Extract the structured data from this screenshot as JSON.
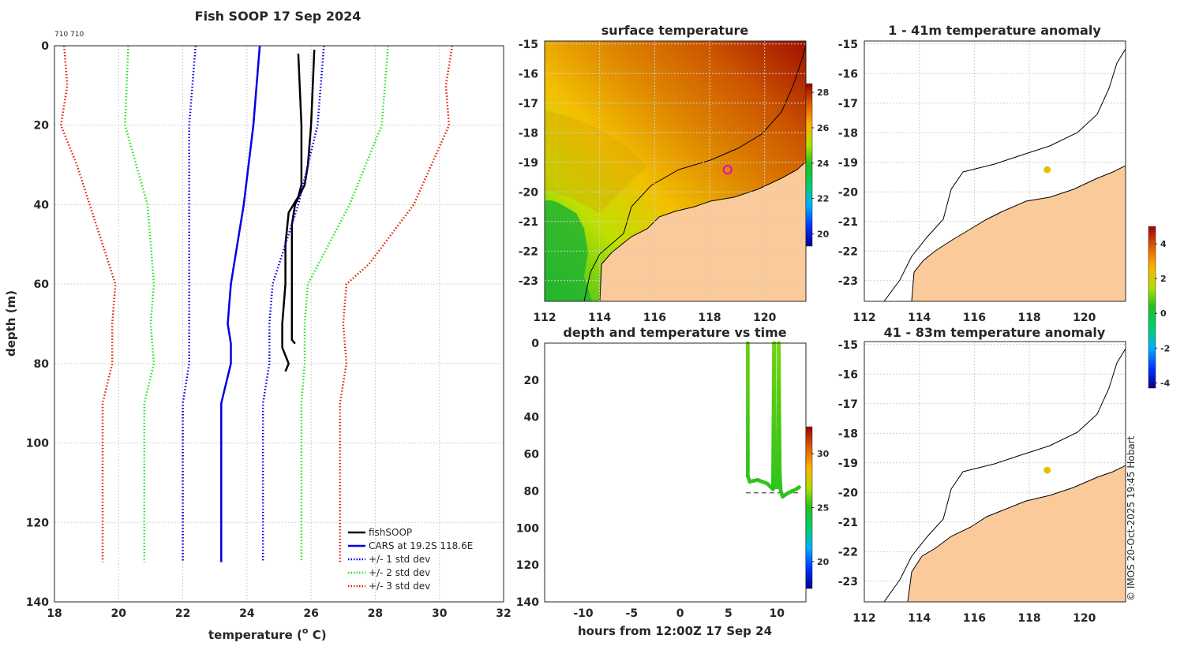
{
  "figure": {
    "credit": "© IMOS 20-Oct-2025 19:45 Hobart",
    "colors": {
      "obs": "#000000",
      "cars": "#0000e6",
      "std1": "#0000e6",
      "std2": "#1ee61e",
      "std3": "#e61e00",
      "land": "#fbca9a"
    }
  },
  "profile_panel": {
    "title": "Fish SOOP 17 Sep 2024",
    "corner_label": "710 710",
    "xlabel_main": "temperature (",
    "xlabel_sup": "o",
    "xlabel_end": " C)",
    "ylabel": "depth (m)",
    "legend": [
      "fishSOOP",
      "CARS at 19.2S 118.6E",
      "+/- 1 std dev",
      "+/- 2 std dev",
      "+/- 3 std dev"
    ]
  },
  "map_panels": {
    "sst_title": "surface temperature",
    "anom1_title": "1 - 41m temperature anomaly",
    "anom2_title": "41 - 83m temperature anomaly",
    "sst_colorbar_ticks": [
      "20",
      "22",
      "24",
      "26",
      "28"
    ],
    "anom_colorbar_ticks": [
      "-4",
      "-2",
      "0",
      "2",
      "4"
    ],
    "lon_ticks": [
      "112",
      "114",
      "116",
      "118",
      "120"
    ],
    "lat_ticks": [
      "-15",
      "-16",
      "-17",
      "-18",
      "-19",
      "-20",
      "-21",
      "-22",
      "-23"
    ]
  },
  "time_panel": {
    "title": "depth and temperature vs time",
    "xlabel": "hours from 12:00Z 17 Sep 24",
    "colorbar_ticks": [
      "20",
      "25",
      "30"
    ]
  },
  "chart_data": [
    {
      "type": "line",
      "title": "Fish SOOP 17 Sep 2024",
      "xlabel": "temperature (o C)",
      "ylabel": "depth (m)",
      "xlim": [
        18,
        32
      ],
      "ylim": [
        140,
        0
      ],
      "xticks": [
        18,
        20,
        22,
        24,
        26,
        28,
        30,
        32
      ],
      "yticks": [
        0,
        20,
        40,
        60,
        80,
        100,
        120,
        140
      ],
      "grid": true,
      "legend_position": "bottom-right",
      "series": [
        {
          "name": "fishSOOP",
          "style": "solid",
          "color": "#000000",
          "points": [
            [
              25.6,
              2
            ],
            [
              25.7,
              20
            ],
            [
              25.7,
              35
            ],
            [
              25.6,
              38
            ],
            [
              25.3,
              42
            ],
            [
              25.2,
              50
            ],
            [
              25.2,
              60
            ],
            [
              25.1,
              70
            ],
            [
              25.1,
              76
            ],
            [
              25.3,
              80
            ],
            [
              25.2,
              82
            ]
          ]
        },
        {
          "name": "fishSOOP",
          "style": "solid",
          "color": "#000000",
          "points": [
            [
              26.1,
              1
            ],
            [
              26.0,
              20
            ],
            [
              25.9,
              30
            ],
            [
              25.8,
              35
            ],
            [
              25.5,
              40
            ],
            [
              25.4,
              45
            ],
            [
              25.4,
              60
            ],
            [
              25.4,
              70
            ],
            [
              25.4,
              74
            ],
            [
              25.5,
              75
            ]
          ]
        },
        {
          "name": "CARS at 19.2S 118.6E",
          "style": "solid",
          "color": "#0000e6",
          "points": [
            [
              24.4,
              0
            ],
            [
              24.2,
              20
            ],
            [
              23.9,
              40
            ],
            [
              23.5,
              60
            ],
            [
              23.4,
              70
            ],
            [
              23.5,
              75
            ],
            [
              23.5,
              80
            ],
            [
              23.2,
              90
            ],
            [
              23.2,
              100
            ],
            [
              23.2,
              120
            ],
            [
              23.2,
              130
            ]
          ]
        },
        {
          "name": "+/- 1 std dev",
          "style": "dotted",
          "color": "#0000e6",
          "points": [
            [
              22.4,
              0
            ],
            [
              22.2,
              20
            ],
            [
              22.2,
              40
            ],
            [
              22.2,
              60
            ],
            [
              22.2,
              70
            ],
            [
              22.2,
              80
            ],
            [
              22.0,
              90
            ],
            [
              22.0,
              130
            ]
          ]
        },
        {
          "name": "+/- 1 std dev",
          "style": "dotted",
          "color": "#0000e6",
          "points": [
            [
              26.4,
              0
            ],
            [
              26.2,
              20
            ],
            [
              25.6,
              40
            ],
            [
              24.8,
              60
            ],
            [
              24.7,
              70
            ],
            [
              24.7,
              80
            ],
            [
              24.5,
              90
            ],
            [
              24.5,
              130
            ]
          ]
        },
        {
          "name": "+/- 2 std dev",
          "style": "dotted",
          "color": "#1ee61e",
          "points": [
            [
              20.3,
              0
            ],
            [
              20.2,
              20
            ],
            [
              20.9,
              40
            ],
            [
              21.1,
              60
            ],
            [
              21.0,
              70
            ],
            [
              21.1,
              80
            ],
            [
              20.8,
              90
            ],
            [
              20.8,
              130
            ]
          ]
        },
        {
          "name": "+/- 2 std dev",
          "style": "dotted",
          "color": "#1ee61e",
          "points": [
            [
              28.4,
              0
            ],
            [
              28.2,
              20
            ],
            [
              27.2,
              40
            ],
            [
              25.9,
              60
            ],
            [
              25.8,
              70
            ],
            [
              25.8,
              80
            ],
            [
              25.7,
              90
            ],
            [
              25.7,
              130
            ]
          ]
        },
        {
          "name": "+/- 3 std dev",
          "style": "dotted",
          "color": "#e61e00",
          "points": [
            [
              18.3,
              0
            ],
            [
              18.4,
              10
            ],
            [
              18.2,
              20
            ],
            [
              18.7,
              30
            ],
            [
              19.5,
              50
            ],
            [
              19.9,
              60
            ],
            [
              19.8,
              70
            ],
            [
              19.8,
              80
            ],
            [
              19.5,
              90
            ],
            [
              19.5,
              130
            ]
          ]
        },
        {
          "name": "+/- 3 std dev",
          "style": "dotted",
          "color": "#e61e00",
          "points": [
            [
              30.4,
              0
            ],
            [
              30.2,
              10
            ],
            [
              30.3,
              20
            ],
            [
              29.2,
              40
            ],
            [
              27.8,
              55
            ],
            [
              27.1,
              60
            ],
            [
              27.0,
              70
            ],
            [
              27.1,
              80
            ],
            [
              26.9,
              90
            ],
            [
              26.9,
              130
            ]
          ]
        }
      ]
    },
    {
      "type": "heatmap",
      "title": "surface temperature",
      "xlim": [
        112,
        121.5
      ],
      "ylim": [
        -23.7,
        -14.9
      ],
      "colorbar": {
        "min": 19.3,
        "max": 28.5,
        "ticks": [
          20,
          22,
          24,
          26,
          28
        ]
      },
      "cast_location": [
        118.65,
        -19.25
      ]
    },
    {
      "type": "scatter",
      "title": "depth and temperature vs time",
      "xlabel": "hours from 12:00Z 17 Sep 24",
      "xlim": [
        -14,
        13
      ],
      "ylim": [
        140,
        0
      ],
      "xticks": [
        -10,
        -5,
        0,
        5,
        10
      ],
      "yticks": [
        0,
        20,
        40,
        60,
        80,
        100,
        120,
        140
      ],
      "colorbar": {
        "min": 17.5,
        "max": 32.5,
        "ticks": [
          20,
          25,
          30
        ]
      },
      "bottom_depth_line": 81,
      "series": [
        {
          "name": "cast 1",
          "points": [
            [
              7.0,
              0,
              25.8
            ],
            [
              7.0,
              20,
              25.8
            ],
            [
              7.0,
              40,
              25.5
            ],
            [
              7.0,
              60,
              25.3
            ],
            [
              7.0,
              72,
              25.2
            ],
            [
              7.2,
              75,
              25.2
            ],
            [
              8.0,
              74,
              25.2
            ],
            [
              9.0,
              76,
              25.2
            ],
            [
              9.6,
              79,
              25.1
            ],
            [
              9.7,
              0,
              25.9
            ]
          ]
        },
        {
          "name": "cast 2",
          "points": [
            [
              9.75,
              0,
              26.0
            ],
            [
              9.75,
              40,
              25.6
            ],
            [
              9.75,
              78,
              25.2
            ],
            [
              10.1,
              78,
              25.2
            ],
            [
              10.2,
              0,
              26.1
            ]
          ]
        },
        {
          "name": "cast 3",
          "points": [
            [
              10.2,
              0,
              26.1
            ],
            [
              10.25,
              40,
              25.5
            ],
            [
              10.3,
              70,
              25.3
            ],
            [
              10.4,
              80,
              25.2
            ],
            [
              10.6,
              83,
              25.1
            ],
            [
              11.2,
              81,
              25.2
            ],
            [
              12.0,
              79,
              25.2
            ],
            [
              12.3,
              78,
              25.2
            ]
          ]
        }
      ]
    },
    {
      "type": "scatter",
      "title": "1 - 41m temperature anomaly",
      "xlim": [
        112,
        121.5
      ],
      "ylim": [
        -23.7,
        -14.9
      ],
      "colorbar": {
        "min": -4.3,
        "max": 5.0,
        "ticks": [
          -4,
          -2,
          0,
          2,
          4
        ]
      },
      "points": [
        [
          118.65,
          -19.25,
          2.6
        ]
      ]
    },
    {
      "type": "scatter",
      "title": "41 - 83m temperature anomaly",
      "xlim": [
        112,
        121.5
      ],
      "ylim": [
        -23.7,
        -14.9
      ],
      "colorbar": {
        "min": -4.3,
        "max": 5.0,
        "ticks": [
          -4,
          -2,
          0,
          2,
          4
        ]
      },
      "points": [
        [
          118.65,
          -19.25,
          2.6
        ]
      ]
    }
  ]
}
